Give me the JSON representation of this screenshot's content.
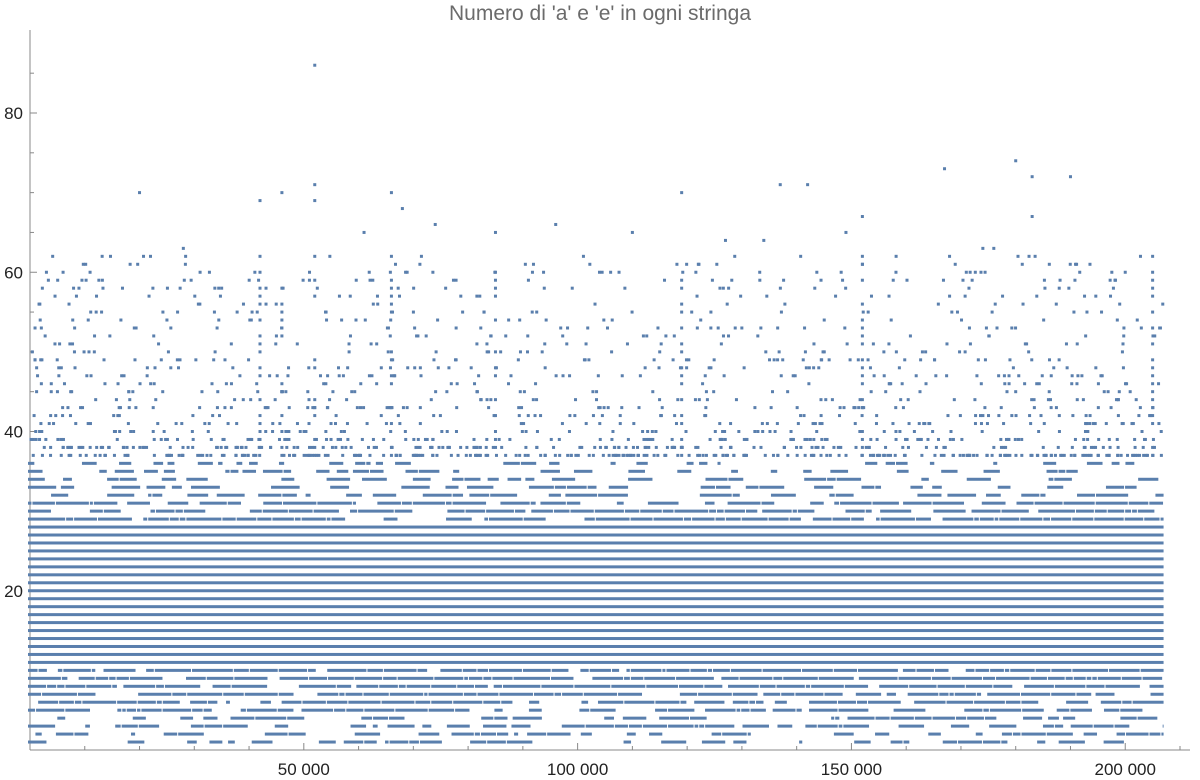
{
  "chart_data": {
    "type": "scatter",
    "title": "Numero di 'a' e 'e' in ogni stringa",
    "xlabel": "",
    "ylabel": "",
    "xlim": [
      0,
      210000
    ],
    "ylim": [
      0,
      90
    ],
    "x_ticks": [
      50000,
      100000,
      150000,
      200000
    ],
    "x_tick_labels": [
      "50 000",
      "100 000",
      "150 000",
      "200 000"
    ],
    "y_ticks": [
      20,
      40,
      60,
      80
    ],
    "y_tick_labels": [
      "20",
      "40",
      "60",
      "80"
    ],
    "grid": false,
    "point_color": "#5a7fad",
    "n_strings": 207000,
    "dense_band": [
      1,
      36
    ],
    "notable_points": [
      {
        "x": 52000,
        "y": 86
      },
      {
        "x": 52000,
        "y": 71
      },
      {
        "x": 20000,
        "y": 70
      },
      {
        "x": 46000,
        "y": 70
      },
      {
        "x": 66000,
        "y": 70
      },
      {
        "x": 119000,
        "y": 70
      },
      {
        "x": 137000,
        "y": 71
      },
      {
        "x": 142000,
        "y": 71
      },
      {
        "x": 167000,
        "y": 73
      },
      {
        "x": 180000,
        "y": 74
      },
      {
        "x": 183000,
        "y": 72
      },
      {
        "x": 190000,
        "y": 72
      },
      {
        "x": 42000,
        "y": 69
      },
      {
        "x": 52000,
        "y": 69
      },
      {
        "x": 68000,
        "y": 68
      },
      {
        "x": 152000,
        "y": 67
      },
      {
        "x": 183000,
        "y": 67
      },
      {
        "x": 96000,
        "y": 66
      },
      {
        "x": 74000,
        "y": 66
      },
      {
        "x": 85000,
        "y": 65
      },
      {
        "x": 61000,
        "y": 65
      },
      {
        "x": 110000,
        "y": 65
      },
      {
        "x": 149000,
        "y": 65
      },
      {
        "x": 176000,
        "y": 63
      },
      {
        "x": 174000,
        "y": 63
      },
      {
        "x": 28000,
        "y": 63
      },
      {
        "x": 134000,
        "y": 64
      },
      {
        "x": 127000,
        "y": 64
      },
      {
        "x": 3000,
        "y": 60
      },
      {
        "x": 200000,
        "y": 60
      },
      {
        "x": 205000,
        "y": 59
      },
      {
        "x": 35000,
        "y": 58
      }
    ]
  }
}
